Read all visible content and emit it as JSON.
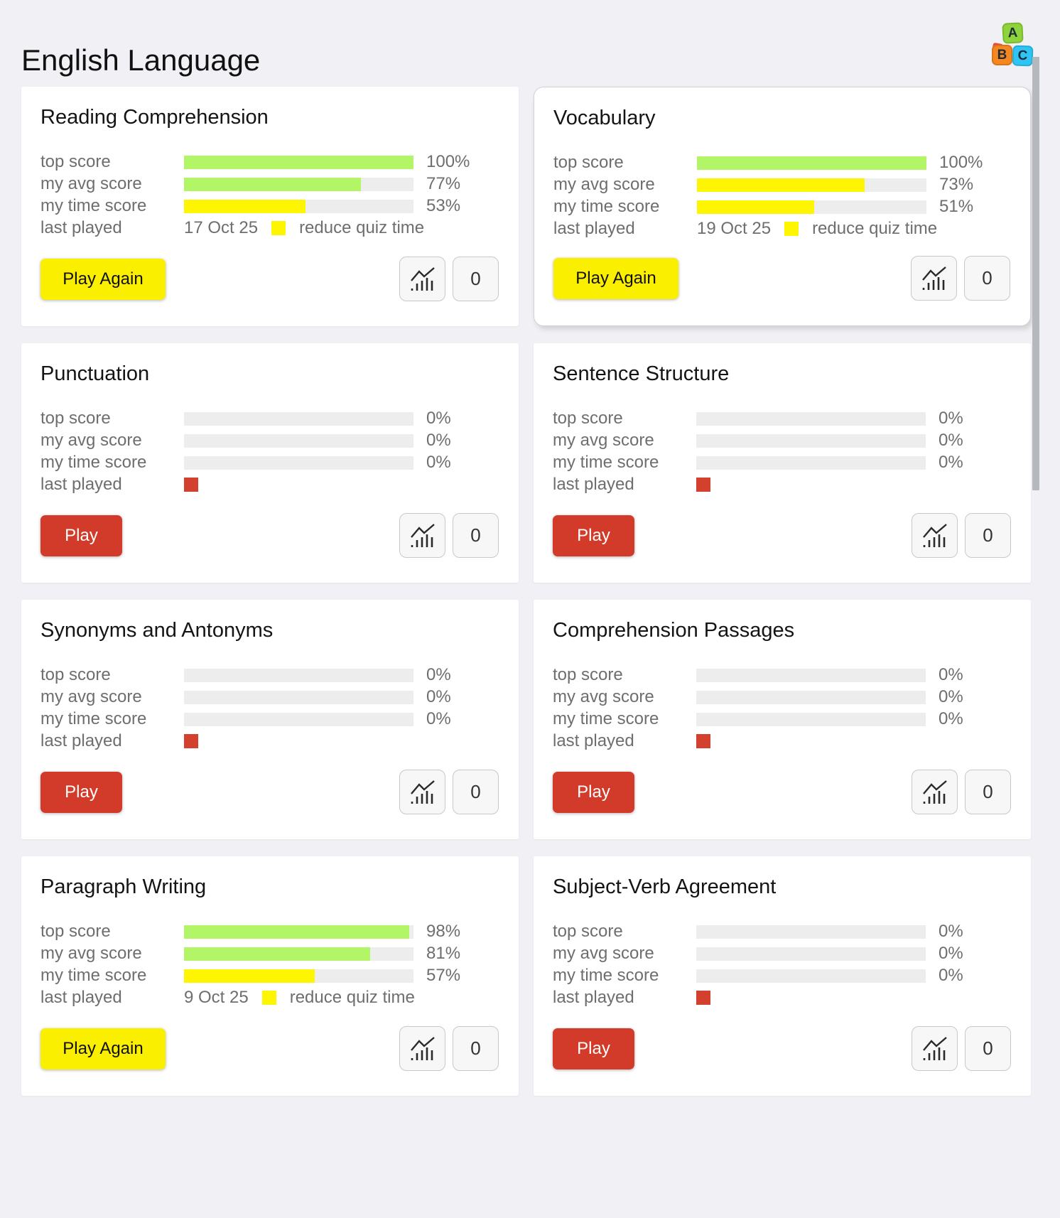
{
  "page": {
    "title": "English Language"
  },
  "logo": {
    "blocks": [
      {
        "letter": "A",
        "color": "#8ed23c"
      },
      {
        "letter": "B",
        "color": "#f6861f"
      },
      {
        "letter": "C",
        "color": "#2fc4f3"
      }
    ]
  },
  "labels": {
    "top_score": "top score",
    "my_avg_score": "my avg score",
    "my_time_score": "my time score",
    "last_played": "last played"
  },
  "colors": {
    "green": "#b2f566",
    "yellow": "#fdf502",
    "red": "#d3402e",
    "play_yellow": "#fbef00",
    "play_red": "#d23b2a",
    "track": "#ededed"
  },
  "icons": {
    "stats_button": "line-chart-icon"
  },
  "cards": [
    {
      "title": "Reading Comprehension",
      "highlighted": false,
      "stats": [
        {
          "display": "100%",
          "pct": 100,
          "color": "green"
        },
        {
          "display": "77%",
          "pct": 77,
          "color": "green"
        },
        {
          "display": "53%",
          "pct": 53,
          "color": "yellow"
        }
      ],
      "last_played": {
        "date": "17 Oct 25",
        "marker_color": "yellow",
        "note": "reduce quiz time"
      },
      "play": {
        "label": "Play Again",
        "variant": "yellow"
      },
      "counter": "0"
    },
    {
      "title": "Vocabulary",
      "highlighted": true,
      "stats": [
        {
          "display": "100%",
          "pct": 100,
          "color": "green"
        },
        {
          "display": "73%",
          "pct": 73,
          "color": "yellow"
        },
        {
          "display": "51%",
          "pct": 51,
          "color": "yellow"
        }
      ],
      "last_played": {
        "date": "19 Oct 25",
        "marker_color": "yellow",
        "note": "reduce quiz time"
      },
      "play": {
        "label": "Play Again",
        "variant": "yellow"
      },
      "counter": "0"
    },
    {
      "title": "Punctuation",
      "highlighted": false,
      "stats": [
        {
          "display": "0%",
          "pct": 0,
          "color": "green"
        },
        {
          "display": "0%",
          "pct": 0,
          "color": "green"
        },
        {
          "display": "0%",
          "pct": 0,
          "color": "green"
        }
      ],
      "last_played": {
        "date": "",
        "marker_color": "red",
        "note": ""
      },
      "play": {
        "label": "Play",
        "variant": "red"
      },
      "counter": "0"
    },
    {
      "title": "Sentence Structure",
      "highlighted": false,
      "stats": [
        {
          "display": "0%",
          "pct": 0,
          "color": "green"
        },
        {
          "display": "0%",
          "pct": 0,
          "color": "green"
        },
        {
          "display": "0%",
          "pct": 0,
          "color": "green"
        }
      ],
      "last_played": {
        "date": "",
        "marker_color": "red",
        "note": ""
      },
      "play": {
        "label": "Play",
        "variant": "red"
      },
      "counter": "0"
    },
    {
      "title": "Synonyms and Antonyms",
      "highlighted": false,
      "stats": [
        {
          "display": "0%",
          "pct": 0,
          "color": "green"
        },
        {
          "display": "0%",
          "pct": 0,
          "color": "green"
        },
        {
          "display": "0%",
          "pct": 0,
          "color": "green"
        }
      ],
      "last_played": {
        "date": "",
        "marker_color": "red",
        "note": ""
      },
      "play": {
        "label": "Play",
        "variant": "red"
      },
      "counter": "0"
    },
    {
      "title": "Comprehension Passages",
      "highlighted": false,
      "stats": [
        {
          "display": "0%",
          "pct": 0,
          "color": "green"
        },
        {
          "display": "0%",
          "pct": 0,
          "color": "green"
        },
        {
          "display": "0%",
          "pct": 0,
          "color": "green"
        }
      ],
      "last_played": {
        "date": "",
        "marker_color": "red",
        "note": ""
      },
      "play": {
        "label": "Play",
        "variant": "red"
      },
      "counter": "0"
    },
    {
      "title": "Paragraph Writing",
      "highlighted": false,
      "stats": [
        {
          "display": "98%",
          "pct": 98,
          "color": "green"
        },
        {
          "display": "81%",
          "pct": 81,
          "color": "green"
        },
        {
          "display": "57%",
          "pct": 57,
          "color": "yellow"
        }
      ],
      "last_played": {
        "date": "9 Oct 25",
        "marker_color": "yellow",
        "note": "reduce quiz time"
      },
      "play": {
        "label": "Play Again",
        "variant": "yellow"
      },
      "counter": "0"
    },
    {
      "title": "Subject-Verb Agreement",
      "highlighted": false,
      "stats": [
        {
          "display": "0%",
          "pct": 0,
          "color": "green"
        },
        {
          "display": "0%",
          "pct": 0,
          "color": "green"
        },
        {
          "display": "0%",
          "pct": 0,
          "color": "green"
        }
      ],
      "last_played": {
        "date": "",
        "marker_color": "red",
        "note": ""
      },
      "play": {
        "label": "Play",
        "variant": "red"
      },
      "counter": "0"
    }
  ]
}
